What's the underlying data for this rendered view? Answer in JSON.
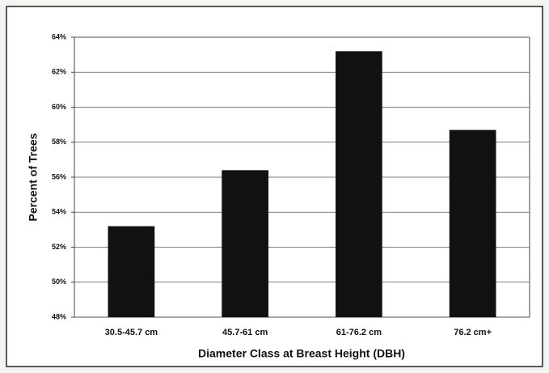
{
  "chart_data": {
    "type": "bar",
    "xlabel": "Diameter Class at Breast Height (DBH)",
    "ylabel": "Percent of Trees",
    "categories": [
      "30.5-45.7 cm",
      "45.7-61 cm",
      "61-76.2 cm",
      "76.2 cm+"
    ],
    "values": [
      53.2,
      56.4,
      63.2,
      58.7
    ],
    "color": "#111111",
    "ylim": [
      48,
      64
    ],
    "yticks": [
      {
        "value": 48,
        "label": "48%"
      },
      {
        "value": 50,
        "label": "50%"
      },
      {
        "value": 52,
        "label": "52%"
      },
      {
        "value": 54,
        "label": "54%"
      },
      {
        "value": 56,
        "label": "56%"
      },
      {
        "value": 58,
        "label": "58%"
      },
      {
        "value": 60,
        "label": "60%"
      },
      {
        "value": 62,
        "label": "62%"
      },
      {
        "value": 64,
        "label": "64%"
      }
    ],
    "grid": true
  }
}
